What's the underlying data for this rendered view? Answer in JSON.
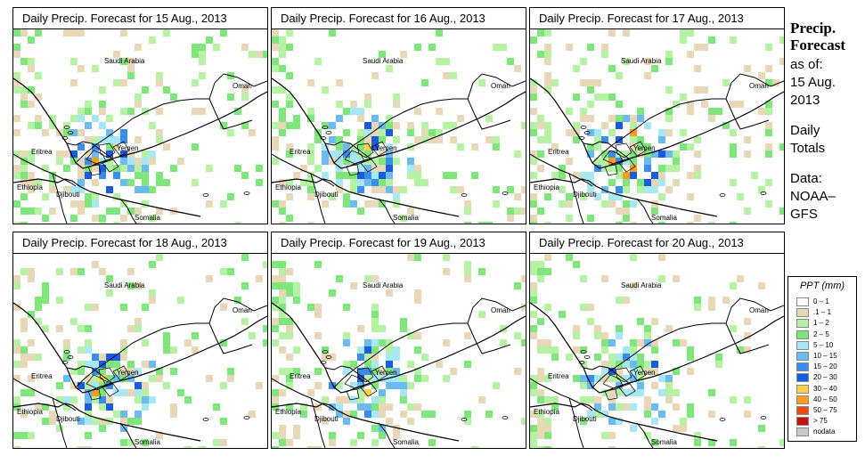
{
  "panels": [
    {
      "title": "Daily Precip. Forecast for  15 Aug., 2013",
      "seed": 15,
      "density": 0.1,
      "heavy": 0.2
    },
    {
      "title": "Daily Precip. Forecast for  16 Aug., 2013",
      "seed": 16,
      "density": 0.09,
      "heavy": 0.25
    },
    {
      "title": "Daily Precip. Forecast for  17 Aug., 2013",
      "seed": 17,
      "density": 0.11,
      "heavy": 0.3
    },
    {
      "title": "Daily Precip. Forecast for  18 Aug., 2013",
      "seed": 18,
      "density": 0.08,
      "heavy": 0.18
    },
    {
      "title": "Daily Precip. Forecast for  19 Aug., 2013",
      "seed": 19,
      "density": 0.07,
      "heavy": 0.15
    },
    {
      "title": "Daily Precip. Forecast for  20 Aug., 2013",
      "seed": 20,
      "density": 0.06,
      "heavy": 0.1
    }
  ],
  "map_labels": {
    "saudi_arabia": "Saudi Arabia",
    "oman": "Oman",
    "yemen": "Yemen",
    "eritrea": "Eritrea",
    "ethiopia": "Ethiopia",
    "djibouti": "Djibouti",
    "somalia": "Somalia"
  },
  "sidebar": {
    "title_line1": "Precip.",
    "title_line2": "Forecast",
    "as_of_label": "as of:",
    "date_line1": "15 Aug.",
    "date_line2": "2013",
    "totals_line1": "Daily",
    "totals_line2": "Totals",
    "data_label": "Data:",
    "source_line1": "NOAA–",
    "source_line2": "GFS"
  },
  "legend": {
    "title": "PPT (mm)",
    "items": [
      {
        "label": "0 – 1",
        "color": "#ffffff"
      },
      {
        "label": ".1 – 1",
        "color": "#e8d8b8"
      },
      {
        "label": "1 – 2",
        "color": "#b6f2a4"
      },
      {
        "label": "2 – 5",
        "color": "#7ee67a"
      },
      {
        "label": "5 – 10",
        "color": "#a8e8f4"
      },
      {
        "label": "10 – 15",
        "color": "#6cbaf2"
      },
      {
        "label": "15 – 20",
        "color": "#3a8cee"
      },
      {
        "label": "20 – 30",
        "color": "#1a5ce0"
      },
      {
        "label": "30 – 40",
        "color": "#ffd24a"
      },
      {
        "label": "40 – 50",
        "color": "#ff9c1a"
      },
      {
        "label": "50 – 75",
        "color": "#f04a10"
      },
      {
        "label": "> 75",
        "color": "#c81010"
      },
      {
        "label": "nodata",
        "color": "#c8c8c8"
      }
    ]
  }
}
